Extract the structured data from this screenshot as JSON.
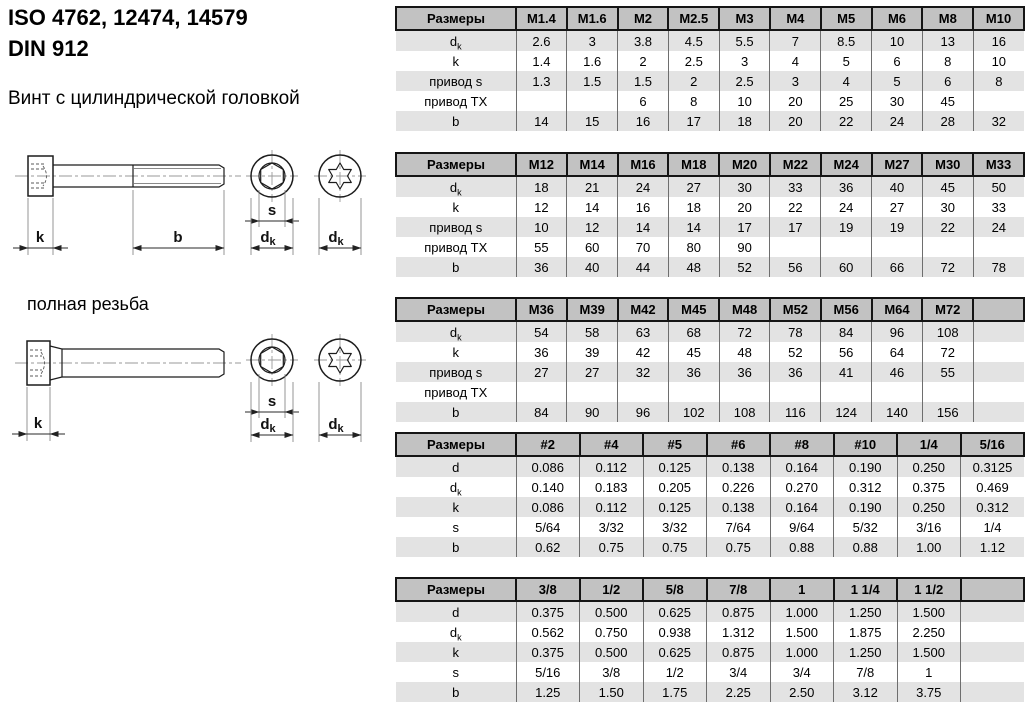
{
  "header": {
    "title_line1": "ISO 4762, 12474, 14579",
    "title_line2": "DIN 912",
    "subtitle": "Винт с цилиндрической головкой",
    "full_thread_note": "полная резьба"
  },
  "drawing": {
    "dim_k": "k",
    "dim_b": "b",
    "dim_s": "s",
    "dim_d": "d",
    "dim_d_sub": "k"
  },
  "tables": [
    {
      "size_header": "Размеры",
      "columns": [
        "M1.4",
        "M1.6",
        "M2",
        "M2.5",
        "M3",
        "M4",
        "M5",
        "M6",
        "M8",
        "M10"
      ],
      "rows": [
        {
          "label": "d",
          "sub": "k",
          "values": [
            "2.6",
            "3",
            "3.8",
            "4.5",
            "5.5",
            "7",
            "8.5",
            "10",
            "13",
            "16"
          ]
        },
        {
          "label": "k",
          "sub": "",
          "values": [
            "1.4",
            "1.6",
            "2",
            "2.5",
            "3",
            "4",
            "5",
            "6",
            "8",
            "10"
          ]
        },
        {
          "label": "привод s",
          "sub": "",
          "values": [
            "1.3",
            "1.5",
            "1.5",
            "2",
            "2.5",
            "3",
            "4",
            "5",
            "6",
            "8"
          ]
        },
        {
          "label": "привод TX",
          "sub": "",
          "values": [
            "",
            "",
            "6",
            "8",
            "10",
            "20",
            "25",
            "30",
            "45",
            ""
          ]
        },
        {
          "label": "b",
          "sub": "",
          "values": [
            "14",
            "15",
            "16",
            "17",
            "18",
            "20",
            "22",
            "24",
            "28",
            "32"
          ]
        }
      ]
    },
    {
      "size_header": "Размеры",
      "columns": [
        "M12",
        "M14",
        "M16",
        "M18",
        "M20",
        "M22",
        "M24",
        "M27",
        "M30",
        "M33"
      ],
      "rows": [
        {
          "label": "d",
          "sub": "k",
          "values": [
            "18",
            "21",
            "24",
            "27",
            "30",
            "33",
            "36",
            "40",
            "45",
            "50"
          ]
        },
        {
          "label": "k",
          "sub": "",
          "values": [
            "12",
            "14",
            "16",
            "18",
            "20",
            "22",
            "24",
            "27",
            "30",
            "33"
          ]
        },
        {
          "label": "привод s",
          "sub": "",
          "values": [
            "10",
            "12",
            "14",
            "14",
            "17",
            "17",
            "19",
            "19",
            "22",
            "24"
          ]
        },
        {
          "label": "привод TX",
          "sub": "",
          "values": [
            "55",
            "60",
            "70",
            "80",
            "90",
            "",
            "",
            "",
            "",
            ""
          ]
        },
        {
          "label": "b",
          "sub": "",
          "values": [
            "36",
            "40",
            "44",
            "48",
            "52",
            "56",
            "60",
            "66",
            "72",
            "78"
          ]
        }
      ]
    },
    {
      "size_header": "Размеры",
      "columns": [
        "M36",
        "M39",
        "M42",
        "M45",
        "M48",
        "M52",
        "M56",
        "M64",
        "M72",
        ""
      ],
      "rows": [
        {
          "label": "d",
          "sub": "k",
          "values": [
            "54",
            "58",
            "63",
            "68",
            "72",
            "78",
            "84",
            "96",
            "108",
            ""
          ]
        },
        {
          "label": "k",
          "sub": "",
          "values": [
            "36",
            "39",
            "42",
            "45",
            "48",
            "52",
            "56",
            "64",
            "72",
            ""
          ]
        },
        {
          "label": "привод s",
          "sub": "",
          "values": [
            "27",
            "27",
            "32",
            "36",
            "36",
            "36",
            "41",
            "46",
            "55",
            ""
          ]
        },
        {
          "label": "привод TX",
          "sub": "",
          "values": [
            "",
            "",
            "",
            "",
            "",
            "",
            "",
            "",
            "",
            ""
          ]
        },
        {
          "label": "b",
          "sub": "",
          "values": [
            "84",
            "90",
            "96",
            "102",
            "108",
            "116",
            "124",
            "140",
            "156",
            ""
          ]
        }
      ]
    },
    {
      "size_header": "Размеры",
      "columns": [
        "#2",
        "#4",
        "#5",
        "#6",
        "#8",
        "#10",
        "1/4",
        "5/16"
      ],
      "rows": [
        {
          "label": "d",
          "sub": "",
          "values": [
            "0.086",
            "0.112",
            "0.125",
            "0.138",
            "0.164",
            "0.190",
            "0.250",
            "0.3125"
          ]
        },
        {
          "label": "d",
          "sub": "k",
          "values": [
            "0.140",
            "0.183",
            "0.205",
            "0.226",
            "0.270",
            "0.312",
            "0.375",
            "0.469"
          ]
        },
        {
          "label": "k",
          "sub": "",
          "values": [
            "0.086",
            "0.112",
            "0.125",
            "0.138",
            "0.164",
            "0.190",
            "0.250",
            "0.312"
          ]
        },
        {
          "label": "s",
          "sub": "",
          "values": [
            "5/64",
            "3/32",
            "3/32",
            "7/64",
            "9/64",
            "5/32",
            "3/16",
            "1/4"
          ]
        },
        {
          "label": "b",
          "sub": "",
          "values": [
            "0.62",
            "0.75",
            "0.75",
            "0.75",
            "0.88",
            "0.88",
            "1.00",
            "1.12"
          ]
        }
      ]
    },
    {
      "size_header": "Размеры",
      "columns": [
        "3/8",
        "1/2",
        "5/8",
        "7/8",
        "1",
        "1 1/4",
        "1 1/2",
        ""
      ],
      "rows": [
        {
          "label": "d",
          "sub": "",
          "values": [
            "0.375",
            "0.500",
            "0.625",
            "0.875",
            "1.000",
            "1.250",
            "1.500",
            ""
          ]
        },
        {
          "label": "d",
          "sub": "k",
          "values": [
            "0.562",
            "0.750",
            "0.938",
            "1.312",
            "1.500",
            "1.875",
            "2.250",
            ""
          ]
        },
        {
          "label": "k",
          "sub": "",
          "values": [
            "0.375",
            "0.500",
            "0.625",
            "0.875",
            "1.000",
            "1.250",
            "1.500",
            ""
          ]
        },
        {
          "label": "s",
          "sub": "",
          "values": [
            "5/16",
            "3/8",
            "1/2",
            "3/4",
            "3/4",
            "7/8",
            "1",
            ""
          ]
        },
        {
          "label": "b",
          "sub": "",
          "values": [
            "1.25",
            "1.50",
            "1.75",
            "2.25",
            "2.50",
            "3.12",
            "3.75",
            ""
          ]
        }
      ]
    }
  ]
}
